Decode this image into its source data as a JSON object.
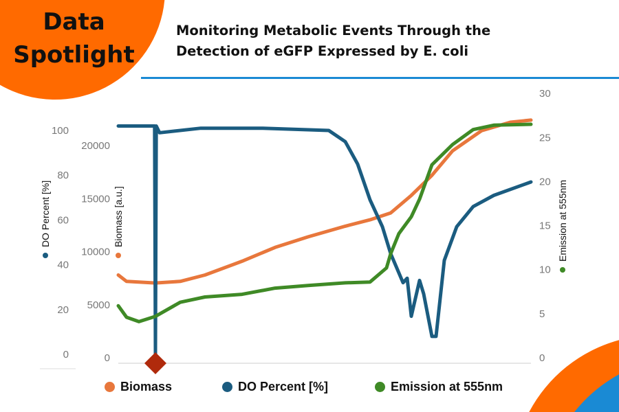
{
  "badge": {
    "line1": "Data",
    "line2": "Spotlight"
  },
  "title": {
    "line1": "Monitoring Metabolic Events Through the",
    "line2": "Detection of eGFP Expressed by E. coli"
  },
  "colors": {
    "biomass": "#e8773c",
    "do": "#1b5c80",
    "emission": "#3f8a26",
    "marker": "#b02a0c",
    "accent_orange": "#ff6a00",
    "accent_blue": "#1a8ad4"
  },
  "chart_data": {
    "type": "line",
    "title": "Monitoring Metabolic Events Through the Detection of eGFP Expressed by E. coli",
    "x_ticks_shown": false,
    "grid": false,
    "legend": "bottom",
    "axes": {
      "do": {
        "label": "DO Percent [%]",
        "side": "left-outer",
        "range": [
          0,
          100
        ],
        "ticks": [
          "0",
          "20",
          "40",
          "60",
          "80",
          "100"
        ]
      },
      "biomass": {
        "label": "Biomass [a.u.]",
        "side": "left-inner",
        "range": [
          0,
          22000
        ],
        "ticks": [
          "0",
          "5000",
          "10000",
          "15000",
          "20000"
        ]
      },
      "emission": {
        "label": "Emission at 555nm",
        "side": "right",
        "range": [
          0,
          30
        ],
        "ticks": [
          "0",
          "5",
          "10",
          "15",
          "20",
          "25",
          "30"
        ]
      }
    },
    "series": [
      {
        "name": "Biomass",
        "axis": "biomass",
        "x": [
          0,
          2,
          9,
          15,
          21,
          30,
          38,
          46,
          55,
          61,
          66,
          71,
          76,
          81,
          88,
          95,
          100
        ],
        "values": [
          7800,
          7200,
          7050,
          7200,
          7800,
          9100,
          10400,
          11400,
          12400,
          13000,
          13650,
          15300,
          17200,
          19500,
          21400,
          22200,
          22400
        ]
      },
      {
        "name": "DO Percent [%]",
        "axis": "do",
        "x": [
          0,
          8.8,
          9,
          9.2,
          10,
          20,
          35,
          51,
          55,
          58,
          61,
          64,
          66,
          69,
          70,
          71,
          73,
          74,
          76,
          77,
          79,
          82,
          86,
          91,
          100
        ],
        "values": [
          102,
          102,
          0,
          102,
          99,
          101,
          101,
          100,
          95,
          85,
          69,
          57,
          45,
          32,
          34,
          17,
          33,
          27,
          8,
          8,
          42,
          57,
          66,
          71,
          77
        ]
      },
      {
        "name": "Emission at 555nm",
        "axis": "emission",
        "x": [
          0,
          2,
          5,
          9,
          15,
          21,
          30,
          38,
          46,
          55,
          61,
          65,
          66,
          68,
          71,
          73,
          76,
          81,
          86,
          91,
          100
        ],
        "values": [
          5.9,
          4.6,
          4.1,
          4.7,
          6.3,
          6.9,
          7.2,
          7.9,
          8.2,
          8.5,
          8.6,
          10.2,
          11.8,
          14.1,
          16,
          18,
          21.9,
          24.2,
          25.9,
          26.4,
          26.5
        ]
      }
    ],
    "marker": {
      "x": 9,
      "shape": "diamond"
    }
  }
}
